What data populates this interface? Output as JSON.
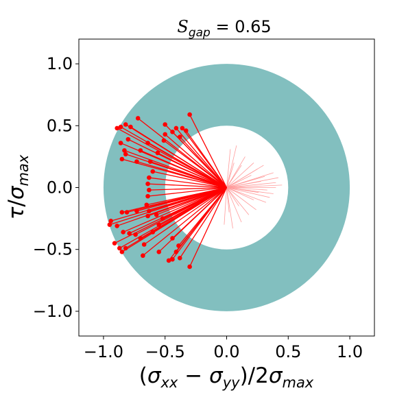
{
  "chart_data": {
    "type": "scatter",
    "title": {
      "symbol": "S",
      "subscript": "gap",
      "equals": " = ",
      "value": "0.65"
    },
    "xlabel": {
      "parts": [
        "(",
        "σ",
        "xx",
        " − ",
        "σ",
        "yy",
        ")/2",
        "σ",
        "max"
      ]
    },
    "ylabel": {
      "parts": [
        "τ",
        "/",
        "σ",
        "max"
      ]
    },
    "xlim": [
      -1.2,
      1.2
    ],
    "ylim": [
      -1.2,
      1.2
    ],
    "xticks": [
      -1.0,
      -0.5,
      0.0,
      0.5,
      1.0
    ],
    "yticks": [
      -1.0,
      -0.5,
      0.0,
      0.5,
      1.0
    ],
    "tick_labels_x": [
      "−1.0",
      "−0.5",
      "0.0",
      "0.5",
      "1.0"
    ],
    "tick_labels_y": [
      "−1.0",
      "−0.5",
      "0.0",
      "0.5",
      "1.0"
    ],
    "annulus": {
      "inner_radius": 0.5,
      "outer_radius": 1.0,
      "color": "#82bfbf"
    },
    "colors": {
      "points": "#ff0000",
      "inner_lines": "#ff9a9a"
    },
    "points": [
      [
        -0.89,
        0.48
      ],
      [
        -0.86,
        0.49
      ],
      [
        -0.82,
        0.51
      ],
      [
        -0.72,
        0.56
      ],
      [
        -0.78,
        0.49
      ],
      [
        -0.86,
        0.36
      ],
      [
        -0.8,
        0.39
      ],
      [
        -0.83,
        0.3
      ],
      [
        -0.82,
        0.27
      ],
      [
        -0.85,
        0.23
      ],
      [
        -0.73,
        0.21
      ],
      [
        -0.62,
        0.21
      ],
      [
        -0.5,
        0.51
      ],
      [
        -0.44,
        0.45
      ],
      [
        -0.41,
        0.48
      ],
      [
        -0.38,
        0.41
      ],
      [
        -0.36,
        0.48
      ],
      [
        -0.33,
        0.46
      ],
      [
        -0.3,
        0.59
      ],
      [
        -0.51,
        0.38
      ],
      [
        -0.5,
        0.43
      ],
      [
        -0.64,
        0.36
      ],
      [
        -0.7,
        0.3
      ],
      [
        -0.56,
        0.28
      ],
      [
        -0.6,
        0.13
      ],
      [
        -0.63,
        0.08
      ],
      [
        -0.64,
        0.03
      ],
      [
        -0.63,
        -0.02
      ],
      [
        -0.64,
        -0.07
      ],
      [
        -0.65,
        -0.14
      ],
      [
        -0.63,
        -0.19
      ],
      [
        -0.64,
        -0.23
      ],
      [
        -0.73,
        -0.19
      ],
      [
        -0.81,
        -0.2
      ],
      [
        -0.85,
        -0.2
      ],
      [
        -0.94,
        -0.27
      ],
      [
        -0.95,
        -0.3
      ],
      [
        -0.89,
        -0.31
      ],
      [
        -0.84,
        -0.36
      ],
      [
        -0.79,
        -0.37
      ],
      [
        -0.74,
        -0.38
      ],
      [
        -0.91,
        -0.45
      ],
      [
        -0.87,
        -0.49
      ],
      [
        -0.85,
        -0.52
      ],
      [
        -0.82,
        -0.49
      ],
      [
        -0.67,
        -0.46
      ],
      [
        -0.7,
        -0.41
      ],
      [
        -0.6,
        -0.36
      ],
      [
        -0.55,
        -0.3
      ],
      [
        -0.68,
        -0.55
      ],
      [
        -0.55,
        -0.52
      ],
      [
        -0.47,
        -0.59
      ],
      [
        -0.44,
        -0.58
      ],
      [
        -0.38,
        -0.57
      ],
      [
        -0.41,
        -0.52
      ],
      [
        -0.39,
        -0.47
      ],
      [
        -0.44,
        -0.41
      ],
      [
        -0.3,
        -0.64
      ],
      [
        -0.52,
        -0.25
      ],
      [
        -0.57,
        -0.22
      ]
    ],
    "fan_lines": [
      [
        0.08,
        0.34
      ],
      [
        0.03,
        0.31
      ],
      [
        0.15,
        0.25
      ],
      [
        0.22,
        0.2
      ],
      [
        0.25,
        0.15
      ],
      [
        0.38,
        0.12
      ],
      [
        0.42,
        0.08
      ],
      [
        0.45,
        0.02
      ],
      [
        0.4,
        0.0
      ],
      [
        0.38,
        -0.05
      ],
      [
        0.32,
        -0.12
      ],
      [
        0.24,
        -0.18
      ],
      [
        0.18,
        -0.22
      ],
      [
        0.12,
        -0.28
      ],
      [
        0.05,
        -0.33
      ],
      [
        -0.02,
        -0.3
      ],
      [
        0.28,
        0.05
      ],
      [
        0.33,
        -0.02
      ],
      [
        0.2,
        0.1
      ],
      [
        0.3,
        0.18
      ],
      [
        0.1,
        -0.15
      ],
      [
        0.35,
        -0.08
      ],
      [
        0.16,
        0.05
      ],
      [
        0.22,
        -0.1
      ],
      [
        0.06,
        0.2
      ],
      [
        0.12,
        0.18
      ],
      [
        0.02,
        -0.2
      ],
      [
        0.26,
        -0.04
      ],
      [
        0.31,
        0.09
      ],
      [
        0.4,
        0.04
      ]
    ]
  }
}
